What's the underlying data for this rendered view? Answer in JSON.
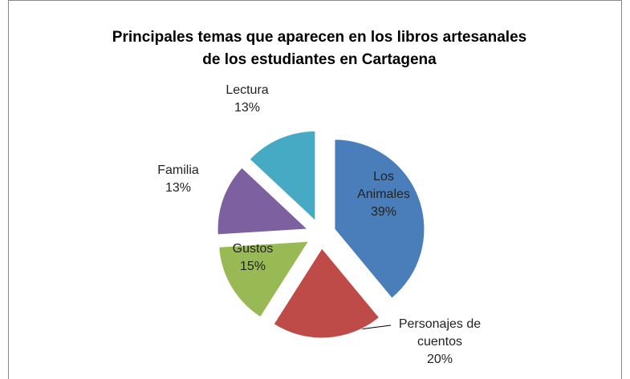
{
  "chart_data": {
    "type": "pie",
    "title": [
      "Principales temas que aparecen en los libros artesanales",
      "de los estudiantes en Cartagena"
    ],
    "categories": [
      "Los Animales",
      "Personajes de cuentos",
      "Gustos",
      "Familia",
      "Lectura"
    ],
    "values": [
      39,
      20,
      15,
      13,
      13
    ],
    "value_labels": [
      "39%",
      "20%",
      "15%",
      "13%",
      "13%"
    ],
    "colors": [
      "#4a7ebb",
      "#be4b48",
      "#98b954",
      "#7d60a0",
      "#46aac5"
    ]
  }
}
